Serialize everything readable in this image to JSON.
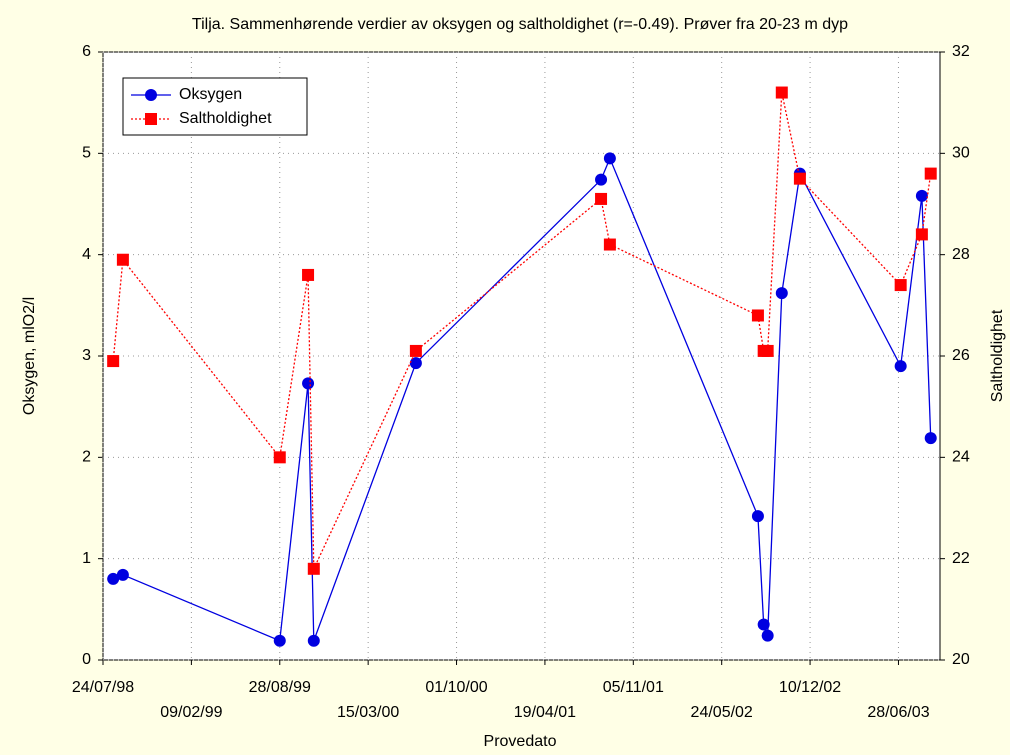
{
  "chart_data": {
    "type": "line",
    "title": "Tilja.  Sammenhørende verdier av oksygen og saltholdighet (r=-0.49). Prøver fra 20-23 m dyp",
    "x_label": "Provedato",
    "y_label": "Oksygen, mlO2/l",
    "y2_label": "Saltholdighet",
    "x": [
      "1998-08-16",
      "1998-09-07",
      "1999-08-28",
      "1999-10-31",
      "1999-11-13",
      "2000-07-01",
      "2001-08-24",
      "2001-09-13",
      "2002-08-14",
      "2002-08-27",
      "2002-09-05",
      "2002-10-07",
      "2002-11-17",
      "2003-07-03",
      "2003-08-20",
      "2003-09-09"
    ],
    "xlim": [
      "1998-07-24",
      "2003-09-30"
    ],
    "xticks": [
      {
        "value": "1998-07-24",
        "label": "24/07/98"
      },
      {
        "value": "1999-02-09",
        "label": "09/02/99"
      },
      {
        "value": "1999-08-28",
        "label": "28/08/99"
      },
      {
        "value": "2000-03-15",
        "label": "15/03/00"
      },
      {
        "value": "2000-10-01",
        "label": "01/10/00"
      },
      {
        "value": "2001-04-19",
        "label": "19/04/01"
      },
      {
        "value": "2001-11-05",
        "label": "05/11/01"
      },
      {
        "value": "2002-05-24",
        "label": "24/05/02"
      },
      {
        "value": "2002-12-10",
        "label": "10/12/02"
      },
      {
        "value": "2003-06-28",
        "label": "28/06/03"
      }
    ],
    "ylim": [
      0,
      6
    ],
    "yticks": [
      0,
      1,
      2,
      3,
      4,
      5,
      6
    ],
    "y2lim": [
      20,
      32
    ],
    "y2ticks": [
      20,
      22,
      24,
      26,
      28,
      30,
      32
    ],
    "grid": true,
    "legend": "upper left",
    "series": [
      {
        "name": "Oksygen",
        "color": "#0000e0",
        "marker": "circle",
        "dashed": false,
        "values": [
          0.8,
          0.84,
          0.19,
          2.73,
          0.19,
          2.93,
          4.74,
          4.95,
          1.42,
          0.35,
          0.24,
          3.62,
          4.8,
          2.9,
          4.58,
          2.19
        ]
      },
      {
        "name": "Saltholdighet",
        "color": "#ff0000",
        "marker": "square",
        "dashed": true,
        "axis": "y2",
        "values": [
          25.9,
          27.9,
          24.0,
          27.6,
          21.8,
          26.1,
          29.1,
          28.2,
          26.8,
          26.1,
          26.1,
          31.2,
          29.5,
          27.4,
          28.4,
          29.6
        ]
      }
    ]
  }
}
